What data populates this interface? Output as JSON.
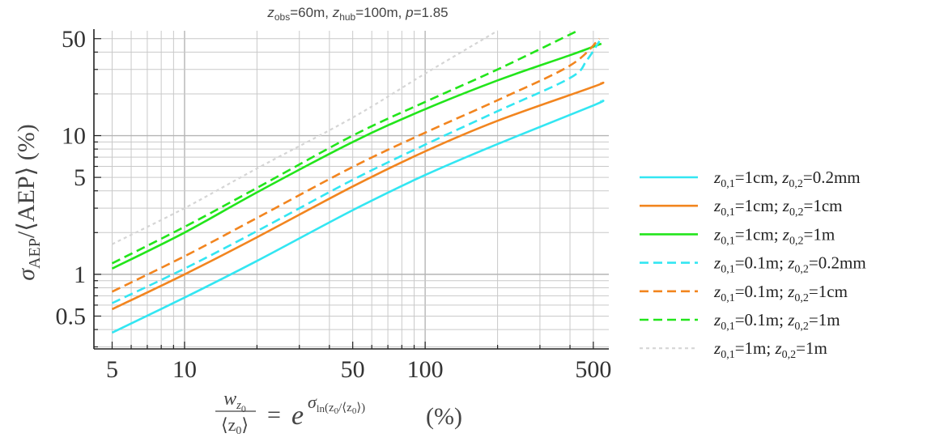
{
  "chart_data": {
    "type": "line",
    "title": {
      "parts": [
        {
          "text": "z",
          "style": "italic"
        },
        {
          "text": "obs",
          "style": "sub"
        },
        {
          "text": "=60m, ",
          "style": "normal"
        },
        {
          "text": "z",
          "style": "italic"
        },
        {
          "text": "hub",
          "style": "sub"
        },
        {
          "text": "=100m, ",
          "style": "normal"
        },
        {
          "text": "p",
          "style": "italic"
        },
        {
          "text": "=1.85",
          "style": "normal"
        }
      ]
    },
    "ylabel": {
      "sigma": "σ",
      "sub": "AEP",
      "rest": "/⟨AEP⟩ (%)"
    },
    "xlabel": {
      "num_w": "w",
      "num_sub": "z",
      "num_sub2": "0",
      "den": "⟨z",
      "den_sub": "0",
      "den_close": "⟩",
      "eq": "=",
      "e": "e",
      "exp_sigma": "σ",
      "exp_sub": "ln",
      "exp_arg": "(z",
      "exp_arg_sub": "0",
      "exp_arg_mid": "/⟨z",
      "exp_arg_sub2": "0",
      "exp_arg_close": "⟩)",
      "pct": "(%)"
    },
    "x_scale": "log",
    "y_scale": "log",
    "xlim": [
      4.2,
      580
    ],
    "ylim": [
      0.29,
      57
    ],
    "grid": true,
    "legend_position": "right",
    "x_tick_labels": [
      {
        "value": 5,
        "label": "5"
      },
      {
        "value": 10,
        "label": "10"
      },
      {
        "value": 50,
        "label": "50"
      },
      {
        "value": 100,
        "label": "100"
      },
      {
        "value": 500,
        "label": "500"
      }
    ],
    "y_tick_labels": [
      {
        "value": 0.5,
        "label": "0.5"
      },
      {
        "value": 1,
        "label": "1"
      },
      {
        "value": 5,
        "label": "5"
      },
      {
        "value": 10,
        "label": "10"
      },
      {
        "value": 50,
        "label": "50"
      }
    ],
    "x_grid": [
      5,
      6,
      7,
      8,
      9,
      10,
      20,
      30,
      40,
      50,
      60,
      70,
      80,
      90,
      100,
      200,
      300,
      400,
      500
    ],
    "y_grid": [
      0.3,
      0.4,
      0.5,
      0.6,
      0.7,
      0.8,
      0.9,
      1,
      2,
      3,
      4,
      5,
      6,
      7,
      8,
      9,
      10,
      20,
      30,
      40,
      50
    ],
    "series": [
      {
        "label": {
          "a": "1cm",
          "sep": ",",
          "b": "0.2mm"
        },
        "color": "#33e6f2",
        "dash": "solid",
        "x": [
          5,
          10,
          20,
          50,
          100,
          200,
          500,
          540
        ],
        "y": [
          0.38,
          0.68,
          1.25,
          2.9,
          5.2,
          8.7,
          16.5,
          17.8
        ]
      },
      {
        "label": {
          "a": "1cm",
          "sep": ";",
          "b": "1cm"
        },
        "color": "#f2851f",
        "dash": "solid",
        "x": [
          5,
          10,
          20,
          50,
          100,
          200,
          500,
          540
        ],
        "y": [
          0.56,
          1.0,
          1.85,
          4.3,
          7.7,
          12.8,
          22.5,
          24.0
        ]
      },
      {
        "label": {
          "a": "1cm",
          "sep": ";",
          "b": "1m"
        },
        "color": "#22e51b",
        "dash": "solid",
        "x": [
          5,
          10,
          20,
          50,
          100,
          200,
          400,
          540
        ],
        "y": [
          1.1,
          2.0,
          3.9,
          9.0,
          15.5,
          25.0,
          38.0,
          46.0
        ]
      },
      {
        "label": {
          "a": "0.1m",
          "sep": ";",
          "b": "0.2mm"
        },
        "color": "#33e6f2",
        "dash": "dash",
        "x": [
          5,
          10,
          20,
          50,
          100,
          200,
          400,
          470,
          530
        ],
        "y": [
          0.62,
          1.1,
          2.05,
          4.8,
          8.6,
          15.0,
          26.0,
          35.0,
          48.0
        ]
      },
      {
        "label": {
          "a": "0.1m",
          "sep": ";",
          "b": "1cm"
        },
        "color": "#f2851f",
        "dash": "dash",
        "x": [
          5,
          10,
          20,
          50,
          100,
          200,
          400,
          530
        ],
        "y": [
          0.75,
          1.35,
          2.55,
          5.95,
          10.5,
          18.0,
          32.0,
          50.0
        ]
      },
      {
        "label": {
          "a": "0.1m",
          "sep": ";",
          "b": "1m"
        },
        "color": "#22e51b",
        "dash": "dash",
        "x": [
          5,
          10,
          20,
          50,
          100,
          200,
          430
        ],
        "y": [
          1.2,
          2.2,
          4.2,
          10.0,
          17.5,
          30.0,
          57.0
        ]
      },
      {
        "label": {
          "a": "1m",
          "sep": ";",
          "b": "1m"
        },
        "color": "#d5d5d5",
        "dash": "dot",
        "x": [
          5,
          10,
          20,
          50,
          100,
          200
        ],
        "y": [
          1.65,
          3.0,
          5.8,
          13.5,
          28.0,
          57.0
        ]
      }
    ]
  }
}
